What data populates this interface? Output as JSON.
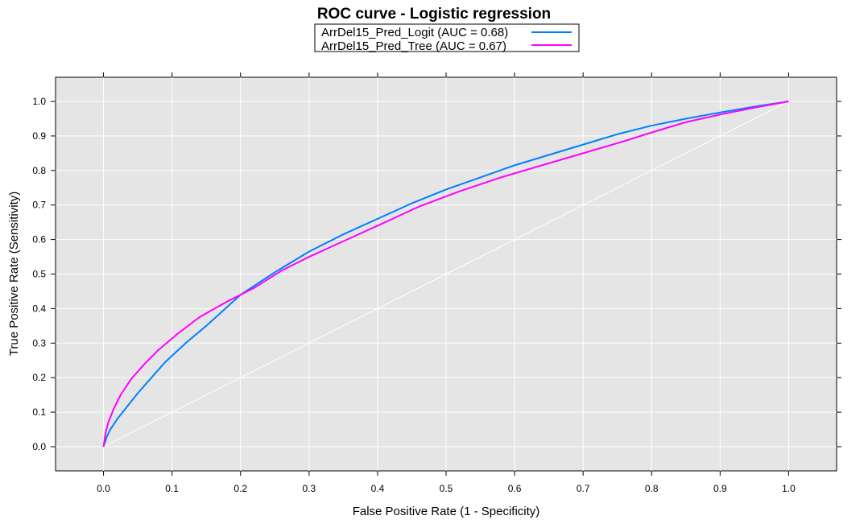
{
  "chart_data": {
    "type": "line",
    "title": "ROC curve - Logistic regression",
    "xlabel": "False Positive Rate (1 - Specificity)",
    "ylabel": "True Positive Rate (Sensitivity)",
    "xlim": [
      -0.07,
      1.07
    ],
    "ylim": [
      -0.07,
      1.07
    ],
    "xticks": [
      "0.0",
      "0.1",
      "0.2",
      "0.3",
      "0.4",
      "0.5",
      "0.6",
      "0.7",
      "0.8",
      "0.9",
      "1.0"
    ],
    "yticks": [
      "0.0",
      "0.1",
      "0.2",
      "0.3",
      "0.4",
      "0.5",
      "0.6",
      "0.7",
      "0.8",
      "0.9",
      "1.0"
    ],
    "grid": true,
    "legend_position": "top",
    "diagonal": {
      "x": [
        0,
        1
      ],
      "y": [
        0,
        1
      ],
      "color": "#ffffff"
    },
    "series": [
      {
        "name": "ArrDel15_Pred_Logit (AUC = 0.68)",
        "color": "#0080ff",
        "x": [
          0.0,
          0.005,
          0.01,
          0.02,
          0.03,
          0.05,
          0.07,
          0.09,
          0.12,
          0.15,
          0.2,
          0.25,
          0.3,
          0.35,
          0.4,
          0.45,
          0.5,
          0.55,
          0.6,
          0.65,
          0.7,
          0.75,
          0.8,
          0.85,
          0.9,
          0.95,
          1.0
        ],
        "y": [
          0.0,
          0.03,
          0.05,
          0.08,
          0.105,
          0.155,
          0.2,
          0.245,
          0.3,
          0.35,
          0.44,
          0.505,
          0.565,
          0.615,
          0.66,
          0.705,
          0.745,
          0.78,
          0.815,
          0.845,
          0.875,
          0.905,
          0.93,
          0.95,
          0.968,
          0.985,
          1.0
        ]
      },
      {
        "name": "ArrDel15_Pred_Tree (AUC = 0.67)",
        "color": "#ff00ff",
        "x": [
          0.0,
          0.003,
          0.007,
          0.015,
          0.025,
          0.04,
          0.06,
          0.08,
          0.11,
          0.14,
          0.18,
          0.22,
          0.26,
          0.3,
          0.35,
          0.4,
          0.46,
          0.52,
          0.58,
          0.64,
          0.7,
          0.76,
          0.8,
          0.85,
          0.9,
          0.95,
          1.0
        ],
        "y": [
          0.0,
          0.04,
          0.07,
          0.11,
          0.15,
          0.195,
          0.24,
          0.28,
          0.33,
          0.375,
          0.42,
          0.46,
          0.51,
          0.55,
          0.595,
          0.64,
          0.695,
          0.74,
          0.78,
          0.815,
          0.85,
          0.885,
          0.91,
          0.94,
          0.962,
          0.982,
          1.0
        ]
      }
    ]
  }
}
